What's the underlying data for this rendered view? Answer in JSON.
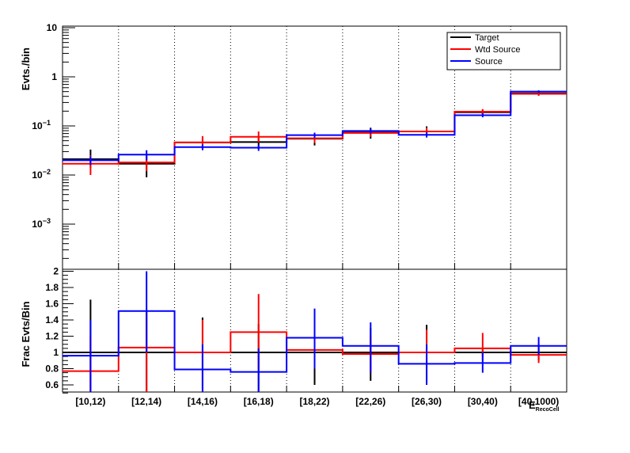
{
  "chart_data": [
    {
      "type": "line",
      "ylabel": "Evts./bin",
      "yscale": "log",
      "ylim": [
        0.00015,
        10
      ],
      "ytick_labels": [
        {
          "v": 10,
          "base": "10",
          "exp": ""
        },
        {
          "v": 1,
          "base": "1",
          "exp": ""
        },
        {
          "v": 0.1,
          "base": "10",
          "exp": "−1"
        },
        {
          "v": 0.01,
          "base": "10",
          "exp": "−2"
        },
        {
          "v": 0.001,
          "base": "10",
          "exp": "−3"
        }
      ],
      "categories": [
        "[10,12)",
        "[12,14)",
        "[14,16)",
        "[16,18)",
        "[18,22)",
        "[22,26)",
        "[26,30)",
        "[30,40)",
        "[40,1000)"
      ],
      "legend": {
        "position": "top-right",
        "entries": [
          "Target",
          "Wtd Source",
          "Source"
        ]
      },
      "series": [
        {
          "name": "Target",
          "color": "#000000",
          "values": [
            0.021,
            0.017,
            0.046,
            0.047,
            0.055,
            0.073,
            0.077,
            0.19,
            0.46
          ],
          "err_low": [
            0.014,
            0.009,
            0.034,
            0.034,
            0.04,
            0.055,
            0.06,
            0.165,
            0.42
          ],
          "err_high": [
            0.033,
            0.025,
            0.058,
            0.06,
            0.07,
            0.092,
            0.098,
            0.215,
            0.5
          ]
        },
        {
          "name": "Wtd Source",
          "color": "#ff0000",
          "values": [
            0.017,
            0.018,
            0.046,
            0.06,
            0.056,
            0.072,
            0.077,
            0.195,
            0.45
          ],
          "err_low": [
            0.01,
            0.012,
            0.036,
            0.046,
            0.045,
            0.06,
            0.064,
            0.175,
            0.41
          ],
          "err_high": [
            0.025,
            0.025,
            0.062,
            0.077,
            0.068,
            0.085,
            0.092,
            0.22,
            0.49
          ]
        },
        {
          "name": "Source",
          "color": "#0000ff",
          "values": [
            0.02,
            0.026,
            0.037,
            0.036,
            0.065,
            0.079,
            0.066,
            0.165,
            0.5
          ],
          "err_low": [
            0.016,
            0.02,
            0.032,
            0.031,
            0.057,
            0.07,
            0.058,
            0.15,
            0.47
          ],
          "err_high": [
            0.024,
            0.032,
            0.042,
            0.041,
            0.073,
            0.088,
            0.074,
            0.18,
            0.53
          ]
        }
      ]
    },
    {
      "type": "line",
      "ylabel": "Frac Evts/Bin",
      "xlabel": "E",
      "xlabel_sub": "RecoCell",
      "ylim": [
        0.5,
        2
      ],
      "ytick_labels": [
        "0.6",
        "0.8",
        "1",
        "1.2",
        "1.4",
        "1.6",
        "1.8",
        "2"
      ],
      "categories": [
        "[10,12)",
        "[12,14)",
        "[14,16)",
        "[16,18)",
        "[18,22)",
        "[22,26)",
        "[26,30)",
        "[30,40)",
        "[40,1000)"
      ],
      "series": [
        {
          "name": "Target",
          "color": "#000000",
          "values": [
            1,
            1,
            1,
            1,
            1,
            1,
            1,
            1,
            1
          ],
          "err_low": [
            0.35,
            0.5,
            0.55,
            0.5,
            0.6,
            0.65,
            0.65,
            0.95,
            0.9
          ],
          "err_high": [
            1.65,
            1.5,
            1.43,
            1.35,
            1.4,
            1.3,
            1.34,
            1.05,
            1.1
          ]
        },
        {
          "name": "Wtd Source",
          "color": "#ff0000",
          "values": [
            0.77,
            1.06,
            1.0,
            1.25,
            1.03,
            0.98,
            1.0,
            1.05,
            0.97
          ],
          "err_low": [
            0.5,
            0.5,
            0.5,
            0.8,
            0.8,
            0.75,
            0.8,
            0.9,
            0.87
          ],
          "err_high": [
            1.2,
            1.5,
            1.4,
            1.72,
            1.3,
            1.2,
            1.28,
            1.24,
            1.07
          ]
        },
        {
          "name": "Source",
          "color": "#0000ff",
          "values": [
            0.96,
            1.51,
            0.79,
            0.76,
            1.18,
            1.08,
            0.86,
            0.87,
            1.08
          ],
          "err_low": [
            0.5,
            1.0,
            0.5,
            0.5,
            0.8,
            0.75,
            0.6,
            0.75,
            0.97
          ],
          "err_high": [
            1.4,
            2.0,
            1.1,
            1.05,
            1.54,
            1.37,
            1.1,
            1.0,
            1.19
          ]
        }
      ]
    }
  ]
}
